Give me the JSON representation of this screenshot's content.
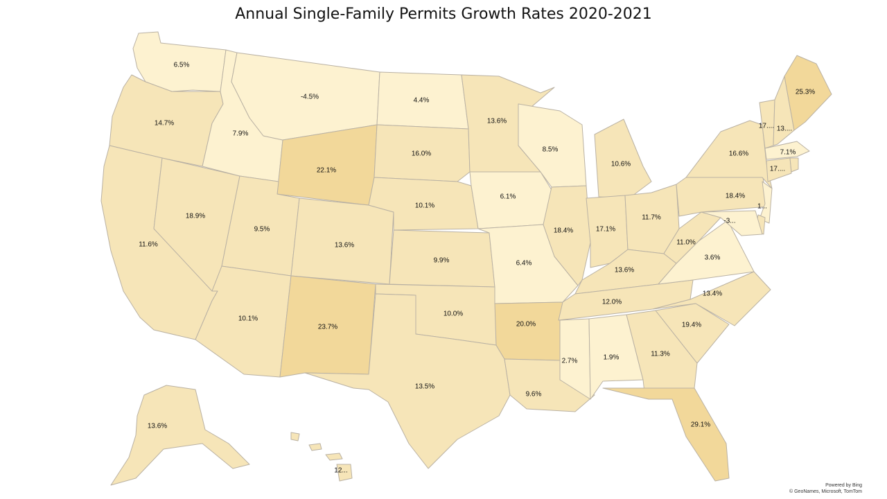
{
  "title": "Annual Single-Family Permits Growth Rates 2020-2021",
  "attribution": {
    "powered": "Powered by Bing",
    "sources": "© GeoNames, Microsoft, TomTom"
  },
  "colors": {
    "low": "#fdf2d0",
    "mid": "#f6e5b8",
    "high": "#f2d89a",
    "border": "#b9b1a3"
  },
  "states": [
    {
      "code": "WA",
      "label": "6.5%",
      "value": 6.5
    },
    {
      "code": "OR",
      "label": "14.7%",
      "value": 14.7
    },
    {
      "code": "CA",
      "label": "11.6%",
      "value": 11.6
    },
    {
      "code": "NV",
      "label": "18.9%",
      "value": 18.9
    },
    {
      "code": "ID",
      "label": "7.9%",
      "value": 7.9
    },
    {
      "code": "MT",
      "label": "-4.5%",
      "value": -4.5
    },
    {
      "code": "WY",
      "label": "22.1%",
      "value": 22.1
    },
    {
      "code": "UT",
      "label": "9.5%",
      "value": 9.5
    },
    {
      "code": "AZ",
      "label": "10.1%",
      "value": 10.1
    },
    {
      "code": "CO",
      "label": "13.6%",
      "value": 13.6
    },
    {
      "code": "NM",
      "label": "23.7%",
      "value": 23.7
    },
    {
      "code": "ND",
      "label": "4.4%",
      "value": 4.4
    },
    {
      "code": "SD",
      "label": "16.0%",
      "value": 16.0
    },
    {
      "code": "NE",
      "label": "10.1%",
      "value": 10.1
    },
    {
      "code": "KS",
      "label": "9.9%",
      "value": 9.9
    },
    {
      "code": "OK",
      "label": "10.0%",
      "value": 10.0
    },
    {
      "code": "TX",
      "label": "13.5%",
      "value": 13.5
    },
    {
      "code": "MN",
      "label": "13.6%",
      "value": 13.6
    },
    {
      "code": "IA",
      "label": "6.1%",
      "value": 6.1
    },
    {
      "code": "MO",
      "label": "6.4%",
      "value": 6.4
    },
    {
      "code": "AR",
      "label": "20.0%",
      "value": 20.0
    },
    {
      "code": "LA",
      "label": "9.6%",
      "value": 9.6
    },
    {
      "code": "WI",
      "label": "8.5%",
      "value": 8.5
    },
    {
      "code": "IL",
      "label": "18.4%",
      "value": 18.4
    },
    {
      "code": "MI",
      "label": "10.6%",
      "value": 10.6
    },
    {
      "code": "IN",
      "label": "17.1%",
      "value": 17.1
    },
    {
      "code": "OH",
      "label": "11.7%",
      "value": 11.7
    },
    {
      "code": "KY",
      "label": "13.6%",
      "value": 13.6
    },
    {
      "code": "TN",
      "label": "12.0%",
      "value": 12.0
    },
    {
      "code": "MS",
      "label": "2.7%",
      "value": 2.7
    },
    {
      "code": "AL",
      "label": "1.9%",
      "value": 1.9
    },
    {
      "code": "GA",
      "label": "11.3%",
      "value": 11.3
    },
    {
      "code": "FL",
      "label": "29.1%",
      "value": 29.1
    },
    {
      "code": "SC",
      "label": "19.4%",
      "value": 19.4
    },
    {
      "code": "NC",
      "label": "13.4%",
      "value": 13.4
    },
    {
      "code": "VA",
      "label": "3.6%",
      "value": 3.6
    },
    {
      "code": "WV",
      "label": "11.0%",
      "value": 11.0
    },
    {
      "code": "PA",
      "label": "18.4%",
      "value": 18.4
    },
    {
      "code": "NY",
      "label": "16.6%",
      "value": 16.6
    },
    {
      "code": "VT",
      "label": "17....",
      "value": 17
    },
    {
      "code": "NH",
      "label": "13....",
      "value": 13
    },
    {
      "code": "ME",
      "label": "25.3%",
      "value": 25.3
    },
    {
      "code": "MA",
      "label": "7.1%",
      "value": 7.1
    },
    {
      "code": "CT",
      "label": "17....",
      "value": 17
    },
    {
      "code": "RI",
      "label": "",
      "value": null
    },
    {
      "code": "NJ",
      "label": "1...",
      "value": 1
    },
    {
      "code": "DE",
      "label": "",
      "value": null
    },
    {
      "code": "MD",
      "label": "-3...",
      "value": -3
    },
    {
      "code": "AK",
      "label": "13.6%",
      "value": 13.6
    },
    {
      "code": "HI",
      "label": "12...",
      "value": 12
    }
  ]
}
